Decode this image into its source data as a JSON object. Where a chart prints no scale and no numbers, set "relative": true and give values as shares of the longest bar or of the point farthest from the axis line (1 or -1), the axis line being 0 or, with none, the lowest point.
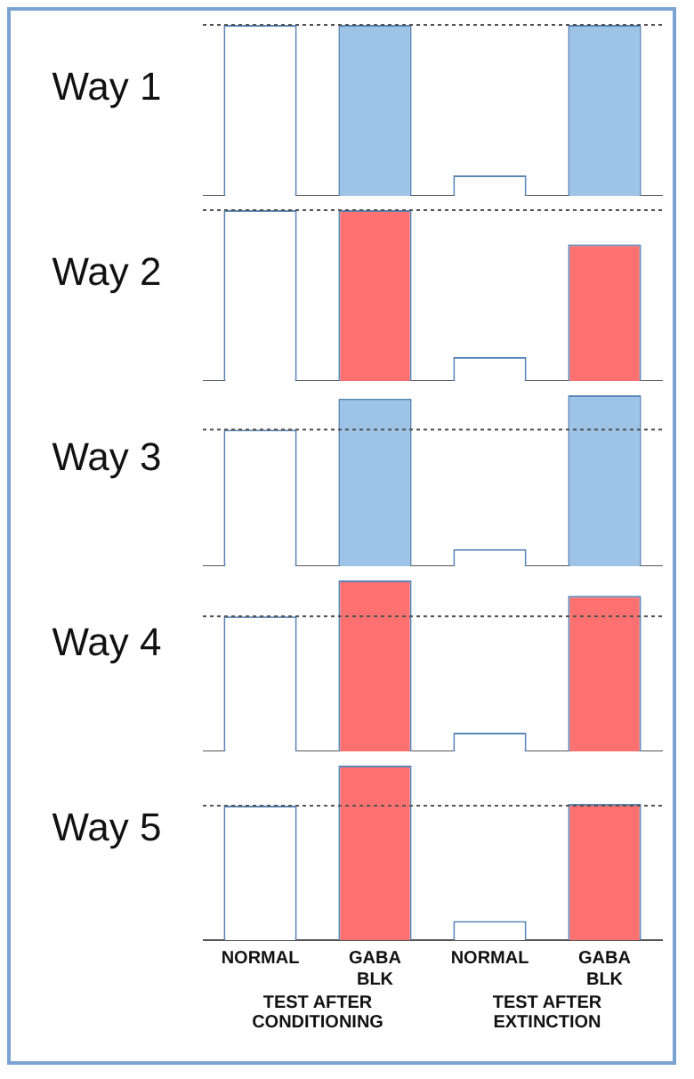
{
  "chart_data": [
    {
      "type": "bar",
      "title": "Way 1",
      "categories": [
        null,
        null,
        null,
        null
      ],
      "values": [
        1,
        1,
        0.12,
        1
      ],
      "colors": [
        "#ffffff",
        "#9dc3e6",
        "#ffffff",
        "#9dc3e6"
      ],
      "relative": true,
      "tick_labels": false,
      "ref_lines": [
        {
          "axis": "y",
          "value": 1,
          "line_style": "dotted"
        }
      ]
    },
    {
      "type": "bar",
      "title": "Way 2",
      "categories": [
        null,
        null,
        null,
        null
      ],
      "values": [
        1,
        1,
        0.14,
        0.8
      ],
      "colors": [
        "#ffffff",
        "#ff7070",
        "#ffffff",
        "#ff7070"
      ],
      "relative": true,
      "tick_labels": false,
      "ref_lines": [
        {
          "axis": "y",
          "value": 1,
          "line_style": "dotted"
        }
      ]
    },
    {
      "type": "bar",
      "title": "Way 3",
      "categories": [
        null,
        null,
        null,
        null
      ],
      "values": [
        0.8,
        0.98,
        0.1,
        1
      ],
      "colors": [
        "#ffffff",
        "#9dc3e6",
        "#ffffff",
        "#9dc3e6"
      ],
      "relative": true,
      "tick_labels": false,
      "ref_lines": [
        {
          "axis": "y",
          "value": 0.8,
          "line_style": "dotted"
        }
      ]
    },
    {
      "type": "bar",
      "title": "Way 4",
      "categories": [
        null,
        null,
        null,
        null
      ],
      "values": [
        0.79,
        1,
        0.11,
        0.91
      ],
      "colors": [
        "#ffffff",
        "#ff7070",
        "#ffffff",
        "#ff7070"
      ],
      "relative": true,
      "tick_labels": false,
      "ref_lines": [
        {
          "axis": "y",
          "value": 0.79,
          "line_style": "dotted"
        }
      ]
    },
    {
      "type": "bar",
      "title": "Way 5",
      "categories": [
        "NORMAL",
        "GABA BLK",
        "NORMAL",
        "GABA BLK"
      ],
      "values": [
        0.77,
        1,
        0.11,
        0.78
      ],
      "colors": [
        "#ffffff",
        "#ff7070",
        "#ffffff",
        "#ff7070"
      ],
      "relative": true,
      "tick_labels": "x",
      "ref_lines": [
        {
          "axis": "y",
          "value": 0.77,
          "line_style": "dotted"
        }
      ],
      "annotations": [
        "TEST AFTER CONDITIONING",
        "TEST AFTER EXTINCTION"
      ]
    }
  ]
}
